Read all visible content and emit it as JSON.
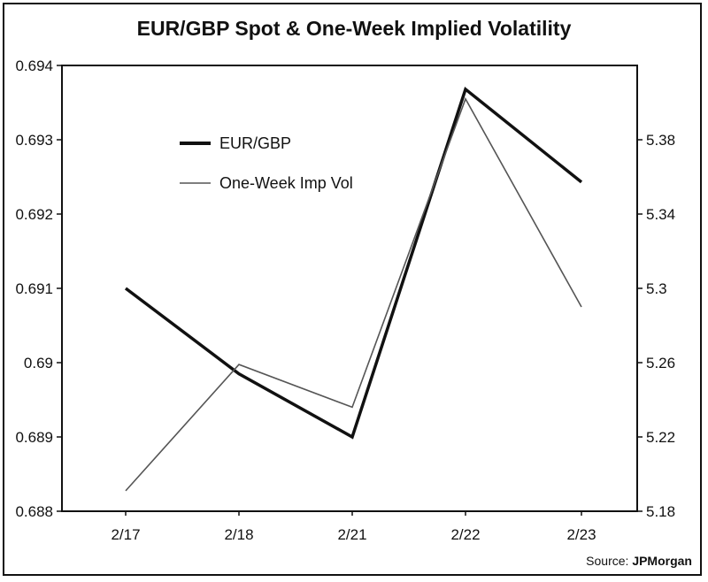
{
  "chart_data": {
    "type": "line",
    "title": "EUR/GBP Spot & One-Week Implied Volatility",
    "categories": [
      "2/17",
      "2/18",
      "2/21",
      "2/22",
      "2/23"
    ],
    "series": [
      {
        "name": "EUR/GBP",
        "axis": "left",
        "values": [
          0.691,
          0.68985,
          0.689,
          0.69368,
          0.69243
        ],
        "color": "#111111",
        "weight": "thick"
      },
      {
        "name": "One-Week Imp Vol",
        "axis": "right",
        "values": [
          5.191,
          5.259,
          5.236,
          5.402,
          5.29
        ],
        "color": "#555555",
        "weight": "thin"
      }
    ],
    "left_axis": {
      "ylim": [
        0.688,
        0.694
      ],
      "ticks": [
        "0.688",
        "0.689",
        "0.69",
        "0.691",
        "0.692",
        "0.693",
        "0.694"
      ]
    },
    "right_axis": {
      "ylim": [
        5.18,
        5.42
      ],
      "ticks": [
        "5.18",
        "5.22",
        "5.26",
        "5.3",
        "5.34",
        "5.38"
      ]
    },
    "legend_position": "upper-left",
    "source": {
      "prefix": "Source: ",
      "name": "JPMorgan"
    }
  }
}
